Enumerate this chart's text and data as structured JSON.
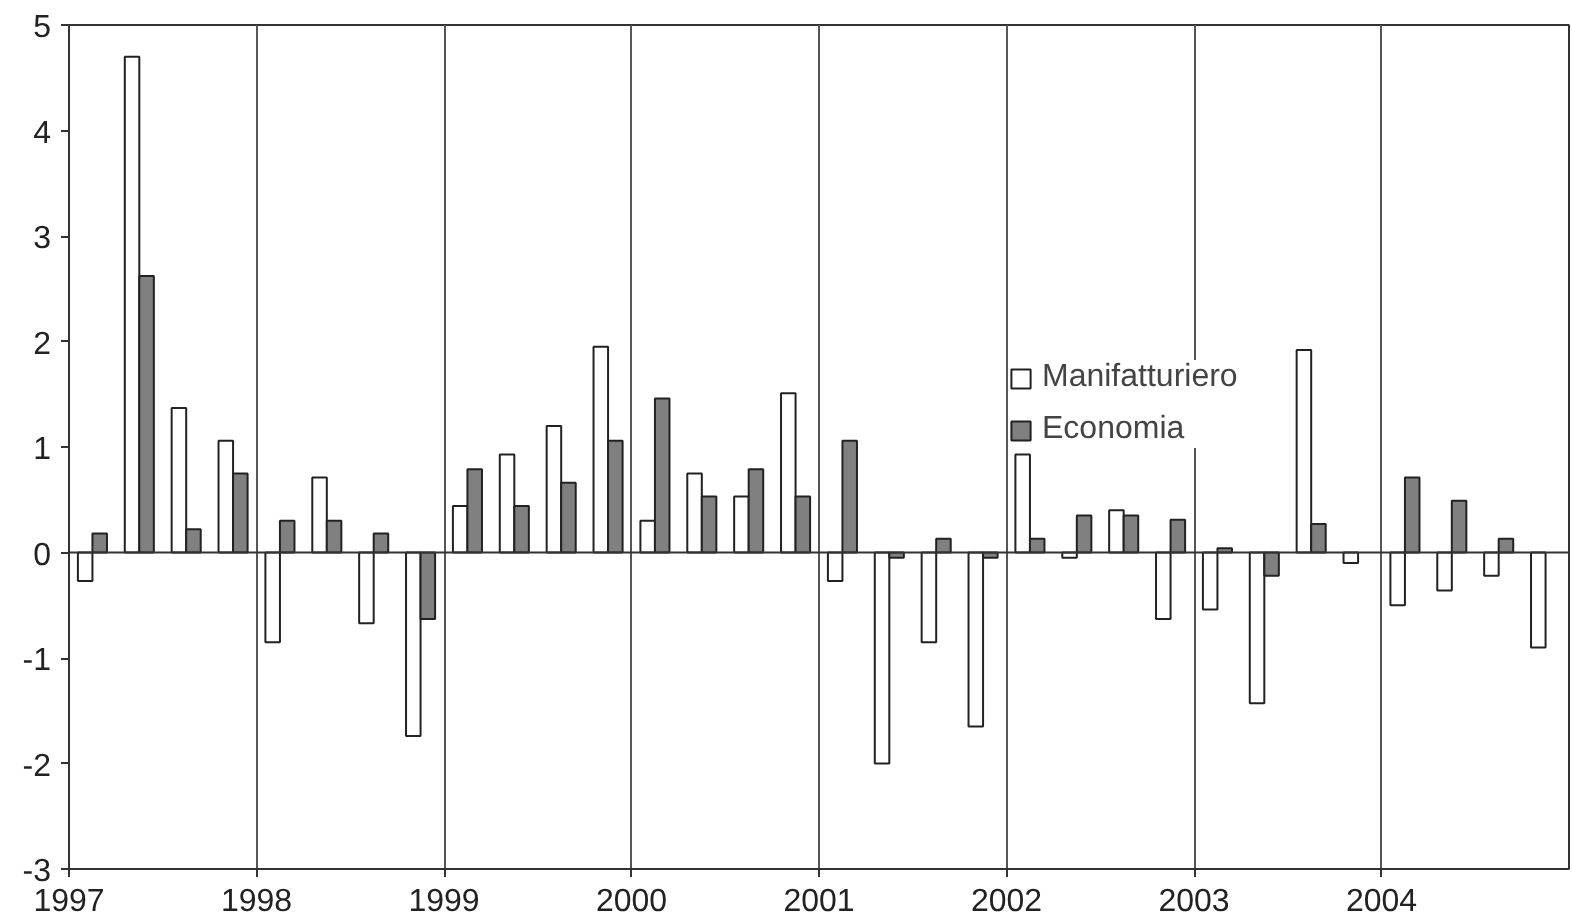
{
  "chart_data": {
    "type": "bar",
    "x": [
      1997.125,
      1997.375,
      1997.625,
      1997.875,
      1998.125,
      1998.375,
      1998.625,
      1998.875,
      1999.125,
      1999.375,
      1999.625,
      1999.875,
      2000.125,
      2000.375,
      2000.625,
      2000.875,
      2001.125,
      2001.375,
      2001.625,
      2001.875,
      2002.125,
      2002.375,
      2002.625,
      2002.875,
      2003.125,
      2003.375,
      2003.625,
      2003.875,
      2004.125,
      2004.375,
      2004.625,
      2004.875
    ],
    "series": [
      {
        "name": "Manifatturiero",
        "color": "#ffffff",
        "values": [
          -0.27,
          4.7,
          1.37,
          1.06,
          -0.85,
          0.71,
          -0.67,
          -1.74,
          0.44,
          0.93,
          1.2,
          1.95,
          0.3,
          0.75,
          0.53,
          1.51,
          -0.27,
          -2.0,
          -0.85,
          -1.65,
          0.93,
          -0.05,
          0.4,
          -0.63,
          -0.54,
          -1.43,
          1.92,
          -0.1,
          -0.5,
          -0.36,
          -0.22,
          -0.9
        ]
      },
      {
        "name": "Economia",
        "color": "#808080",
        "values": [
          0.18,
          2.62,
          0.22,
          0.75,
          0.3,
          0.3,
          0.18,
          -0.63,
          0.79,
          0.44,
          0.66,
          1.06,
          1.46,
          0.53,
          0.79,
          0.53,
          1.06,
          -0.05,
          0.13,
          -0.05,
          0.13,
          0.35,
          0.35,
          0.31,
          0.04,
          -0.22,
          0.27,
          null,
          0.71,
          0.49,
          0.13,
          null
        ]
      }
    ],
    "xlim": [
      1997,
      2005
    ],
    "xticks": [
      1997,
      1998,
      1999,
      2000,
      2001,
      2002,
      2003,
      2004
    ],
    "ylim": [
      -3,
      5
    ],
    "yticks": [
      -3,
      -2,
      -1,
      0,
      1,
      2,
      3,
      4,
      5
    ],
    "grid": "x",
    "legend": "top right"
  }
}
